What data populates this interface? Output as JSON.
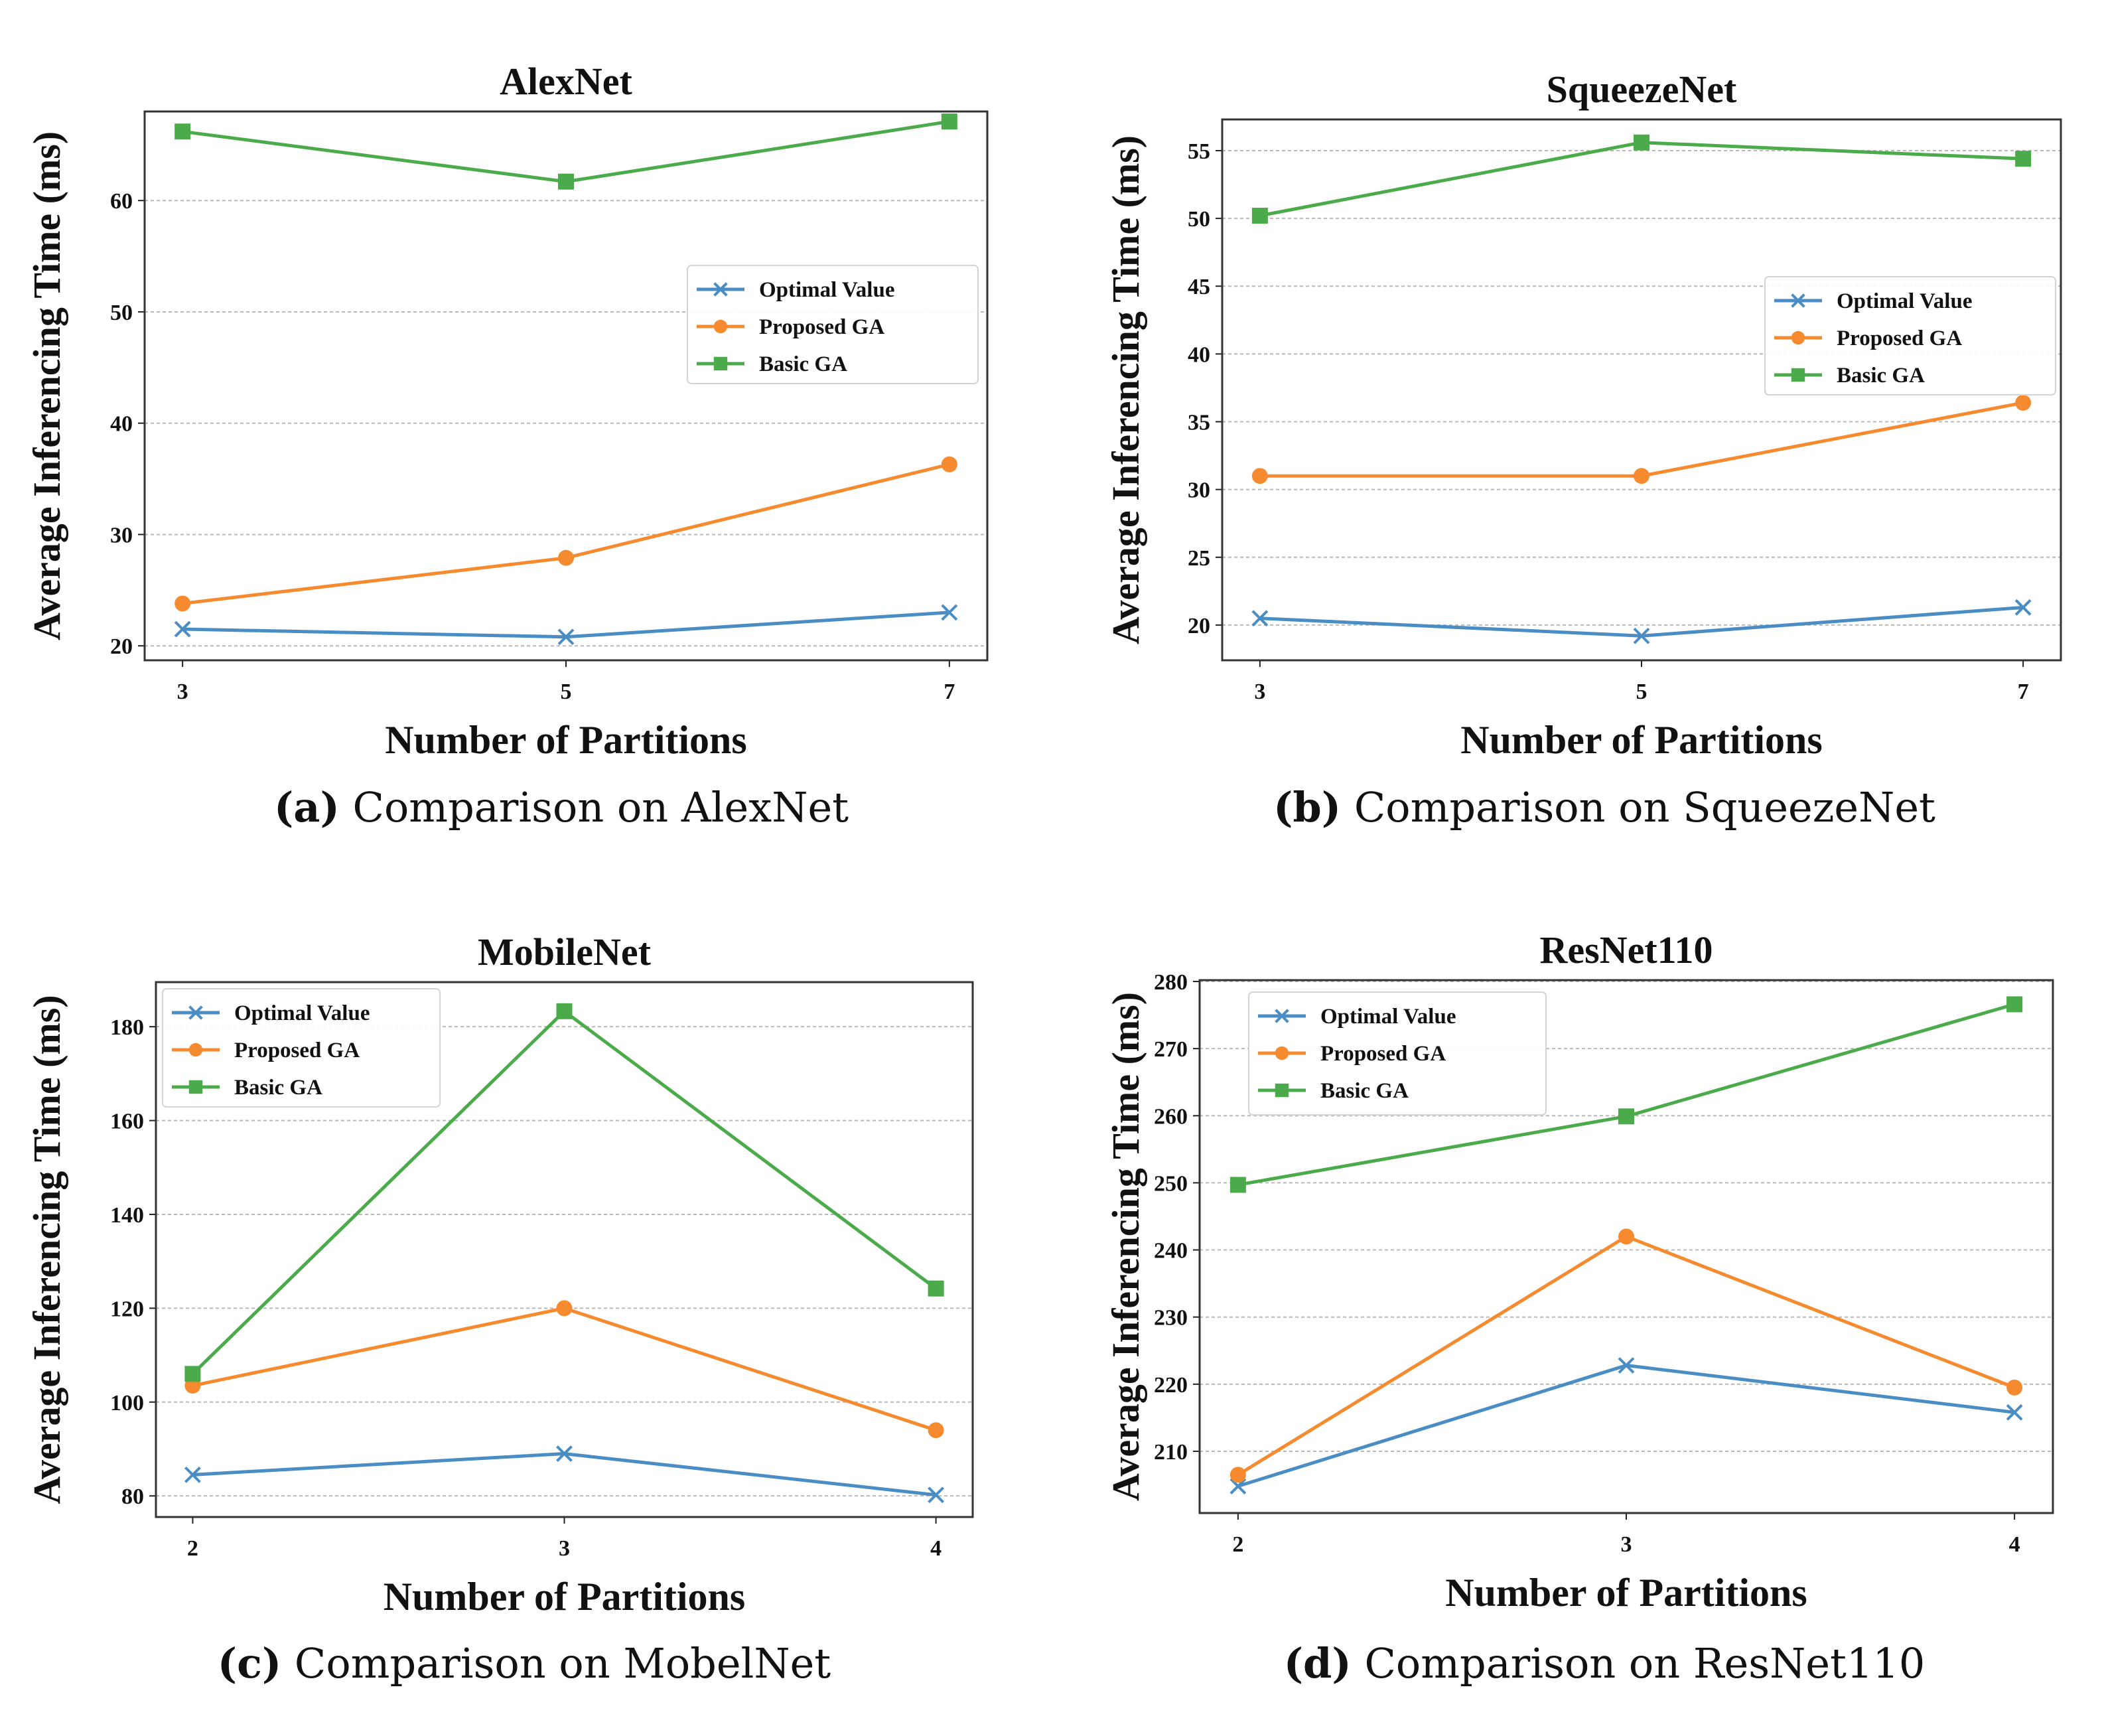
{
  "chart_data": [
    {
      "type": "line",
      "title": "AlexNet",
      "xlabel": "Number of Partitions",
      "ylabel": "Average Inferencing Time (ms)",
      "x": [
        3,
        5,
        7
      ],
      "yticks": [
        20,
        30,
        40,
        50,
        60
      ],
      "ylim": [
        18.7,
        68
      ],
      "grid": true,
      "legend_position": "center-right",
      "caption_label": "(a)",
      "caption_text": "Comparison on AlexNet",
      "series": [
        {
          "name": "Optimal Value",
          "color": "#4a8dc4",
          "marker": "x",
          "values": [
            21.5,
            20.8,
            23.0
          ]
        },
        {
          "name": "Proposed GA",
          "color": "#f58b2e",
          "marker": "o",
          "values": [
            23.8,
            27.9,
            36.3
          ]
        },
        {
          "name": "Basic GA",
          "color": "#4bab4b",
          "marker": "s",
          "values": [
            66.2,
            61.7,
            67.1
          ]
        }
      ]
    },
    {
      "type": "line",
      "title": "SqueezeNet",
      "xlabel": "Number of Partitions",
      "ylabel": "Average Inferencing Time (ms)",
      "x": [
        3,
        5,
        7
      ],
      "yticks": [
        20,
        25,
        30,
        35,
        40,
        45,
        50,
        55
      ],
      "ylim": [
        17.4,
        57.3
      ],
      "grid": true,
      "legend_position": "center-right",
      "caption_label": "(b)",
      "caption_text": "Comparison on SqueezeNet",
      "series": [
        {
          "name": "Optimal Value",
          "color": "#4a8dc4",
          "marker": "x",
          "values": [
            20.5,
            19.2,
            21.3
          ]
        },
        {
          "name": "Proposed GA",
          "color": "#f58b2e",
          "marker": "o",
          "values": [
            31.0,
            31.0,
            36.4
          ]
        },
        {
          "name": "Basic GA",
          "color": "#4bab4b",
          "marker": "s",
          "values": [
            50.2,
            55.6,
            54.4
          ]
        }
      ]
    },
    {
      "type": "line",
      "title": "MobileNet",
      "xlabel": "Number of Partitions",
      "ylabel": "Average Inferencing Time (ms)",
      "x": [
        2,
        3,
        4
      ],
      "yticks": [
        80,
        100,
        120,
        140,
        160,
        180
      ],
      "ylim": [
        75.5,
        189.5
      ],
      "grid": true,
      "legend_position": "upper-left",
      "caption_label": "(c)",
      "caption_text": "Comparison on MobelNet",
      "series": [
        {
          "name": "Optimal Value",
          "color": "#4a8dc4",
          "marker": "x",
          "values": [
            84.5,
            89.0,
            80.2
          ]
        },
        {
          "name": "Proposed GA",
          "color": "#f58b2e",
          "marker": "o",
          "values": [
            103.5,
            120.0,
            94.0
          ]
        },
        {
          "name": "Basic GA",
          "color": "#4bab4b",
          "marker": "s",
          "values": [
            106.0,
            183.3,
            124.2
          ]
        }
      ]
    },
    {
      "type": "line",
      "title": "ResNet110",
      "xlabel": "Number of Partitions",
      "ylabel": "Average Inferencing Time (ms)",
      "x": [
        2,
        3,
        4
      ],
      "yticks": [
        210,
        220,
        230,
        240,
        250,
        260,
        270,
        280
      ],
      "ylim": [
        200.8,
        280.2
      ],
      "grid": true,
      "legend_position": "upper-left",
      "caption_label": "(d)",
      "caption_text": "Comparison on ResNet110",
      "series": [
        {
          "name": "Optimal Value",
          "color": "#4a8dc4",
          "marker": "x",
          "values": [
            204.8,
            222.8,
            215.8
          ]
        },
        {
          "name": "Proposed GA",
          "color": "#f58b2e",
          "marker": "o",
          "values": [
            206.5,
            242.0,
            219.5
          ]
        },
        {
          "name": "Basic GA",
          "color": "#4bab4b",
          "marker": "s",
          "values": [
            249.7,
            259.9,
            276.6
          ]
        }
      ]
    }
  ]
}
